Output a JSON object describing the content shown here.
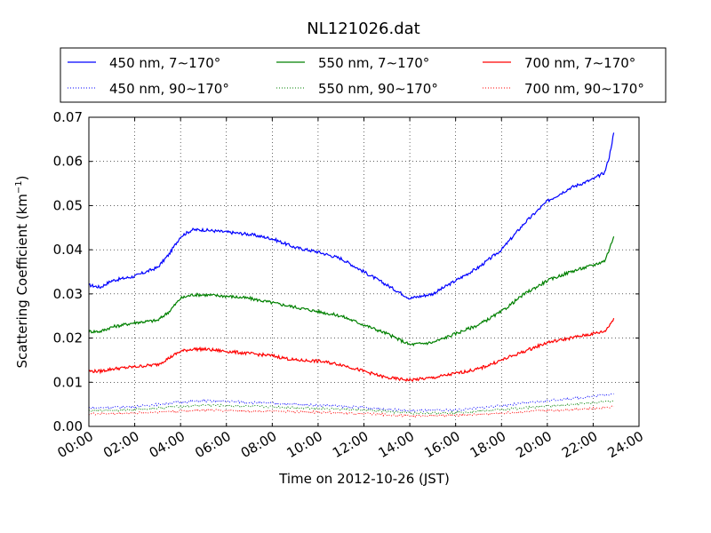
{
  "chart_data": {
    "type": "line",
    "title": "NL121026.dat",
    "xlabel": "Time on 2012-10-26 (JST)",
    "ylabel_main": "Scattering Coefficient (km",
    "ylabel_sup": "−1",
    "ylabel_close": ")",
    "xlim": [
      0,
      24
    ],
    "ylim": [
      0,
      0.07
    ],
    "xticks": [
      {
        "value": 0,
        "label": "00:00"
      },
      {
        "value": 2,
        "label": "02:00"
      },
      {
        "value": 4,
        "label": "04:00"
      },
      {
        "value": 6,
        "label": "06:00"
      },
      {
        "value": 8,
        "label": "08:00"
      },
      {
        "value": 10,
        "label": "10:00"
      },
      {
        "value": 12,
        "label": "12:00"
      },
      {
        "value": 14,
        "label": "14:00"
      },
      {
        "value": 16,
        "label": "16:00"
      },
      {
        "value": 18,
        "label": "18:00"
      },
      {
        "value": 20,
        "label": "20:00"
      },
      {
        "value": 22,
        "label": "22:00"
      },
      {
        "value": 24,
        "label": "24:00"
      }
    ],
    "yticks": [
      {
        "value": 0,
        "label": "0.00"
      },
      {
        "value": 0.01,
        "label": "0.01"
      },
      {
        "value": 0.02,
        "label": "0.02"
      },
      {
        "value": 0.03,
        "label": "0.03"
      },
      {
        "value": 0.04,
        "label": "0.04"
      },
      {
        "value": 0.05,
        "label": "0.05"
      },
      {
        "value": 0.06,
        "label": "0.06"
      },
      {
        "value": 0.07,
        "label": "0.07"
      }
    ],
    "grid": true,
    "legend_position": "top",
    "series": [
      {
        "name": "450 nm, 7∼170°",
        "color": "#0000ff",
        "style": "solid",
        "x": [
          0,
          0.5,
          1,
          2,
          3,
          3.5,
          4,
          4.5,
          5,
          6,
          7,
          8,
          9,
          10,
          11,
          12,
          13,
          14,
          15,
          16,
          17,
          18,
          19,
          20,
          21,
          22,
          22.5,
          22.7,
          22.9
        ],
        "y": [
          0.032,
          0.0315,
          0.033,
          0.034,
          0.036,
          0.039,
          0.043,
          0.0445,
          0.0445,
          0.044,
          0.0435,
          0.0425,
          0.0405,
          0.0395,
          0.038,
          0.035,
          0.032,
          0.029,
          0.03,
          0.033,
          0.036,
          0.04,
          0.046,
          0.051,
          0.054,
          0.056,
          0.0575,
          0.061,
          0.0665
        ]
      },
      {
        "name": "550 nm, 7∼170°",
        "color": "#008000",
        "style": "solid",
        "x": [
          0,
          0.5,
          1,
          2,
          3,
          3.5,
          4,
          4.5,
          5,
          6,
          7,
          8,
          9,
          10,
          11,
          12,
          13,
          14,
          15,
          16,
          17,
          18,
          19,
          20,
          21,
          22,
          22.5,
          22.7,
          22.9
        ],
        "y": [
          0.0215,
          0.0215,
          0.0225,
          0.0235,
          0.024,
          0.026,
          0.029,
          0.0298,
          0.0298,
          0.0295,
          0.029,
          0.028,
          0.027,
          0.026,
          0.025,
          0.023,
          0.021,
          0.0185,
          0.019,
          0.021,
          0.023,
          0.026,
          0.03,
          0.033,
          0.035,
          0.0365,
          0.0375,
          0.04,
          0.043
        ]
      },
      {
        "name": "700 nm, 7∼170°",
        "color": "#ff0000",
        "style": "solid",
        "x": [
          0,
          0.5,
          1,
          2,
          3,
          3.5,
          4,
          4.5,
          5,
          6,
          7,
          8,
          9,
          10,
          11,
          12,
          13,
          14,
          15,
          16,
          17,
          18,
          19,
          20,
          21,
          22,
          22.5,
          22.7,
          22.9
        ],
        "y": [
          0.0125,
          0.0125,
          0.013,
          0.0135,
          0.014,
          0.0155,
          0.017,
          0.0175,
          0.0175,
          0.017,
          0.0165,
          0.016,
          0.015,
          0.0148,
          0.014,
          0.0125,
          0.011,
          0.0105,
          0.011,
          0.012,
          0.013,
          0.015,
          0.017,
          0.019,
          0.02,
          0.021,
          0.0215,
          0.0228,
          0.0245
        ]
      },
      {
        "name": "450 nm, 90∼170°",
        "color": "#0000ff",
        "style": "dotted",
        "x": [
          0,
          2,
          4,
          5,
          6,
          8,
          10,
          12,
          14,
          16,
          18,
          20,
          22,
          22.9
        ],
        "y": [
          0.0042,
          0.0045,
          0.0055,
          0.0058,
          0.0057,
          0.0052,
          0.0048,
          0.0043,
          0.0035,
          0.0037,
          0.0047,
          0.0058,
          0.0068,
          0.0074
        ]
      },
      {
        "name": "550 nm, 90∼170°",
        "color": "#008000",
        "style": "dotted",
        "x": [
          0,
          2,
          4,
          5,
          6,
          8,
          10,
          12,
          14,
          16,
          18,
          20,
          22,
          22.9
        ],
        "y": [
          0.0035,
          0.0038,
          0.0045,
          0.0048,
          0.0047,
          0.0044,
          0.0041,
          0.0037,
          0.003,
          0.0031,
          0.0038,
          0.0046,
          0.0053,
          0.0058
        ]
      },
      {
        "name": "700 nm, 90∼170°",
        "color": "#ff0000",
        "style": "dotted",
        "x": [
          0,
          2,
          4,
          5,
          6,
          8,
          10,
          12,
          14,
          16,
          18,
          20,
          22,
          22.9
        ],
        "y": [
          0.0028,
          0.003,
          0.0035,
          0.0037,
          0.0036,
          0.0034,
          0.0032,
          0.0029,
          0.0024,
          0.0025,
          0.003,
          0.0036,
          0.0041,
          0.0045
        ]
      }
    ],
    "legend_order": [
      0,
      1,
      2,
      3,
      4,
      5
    ]
  }
}
